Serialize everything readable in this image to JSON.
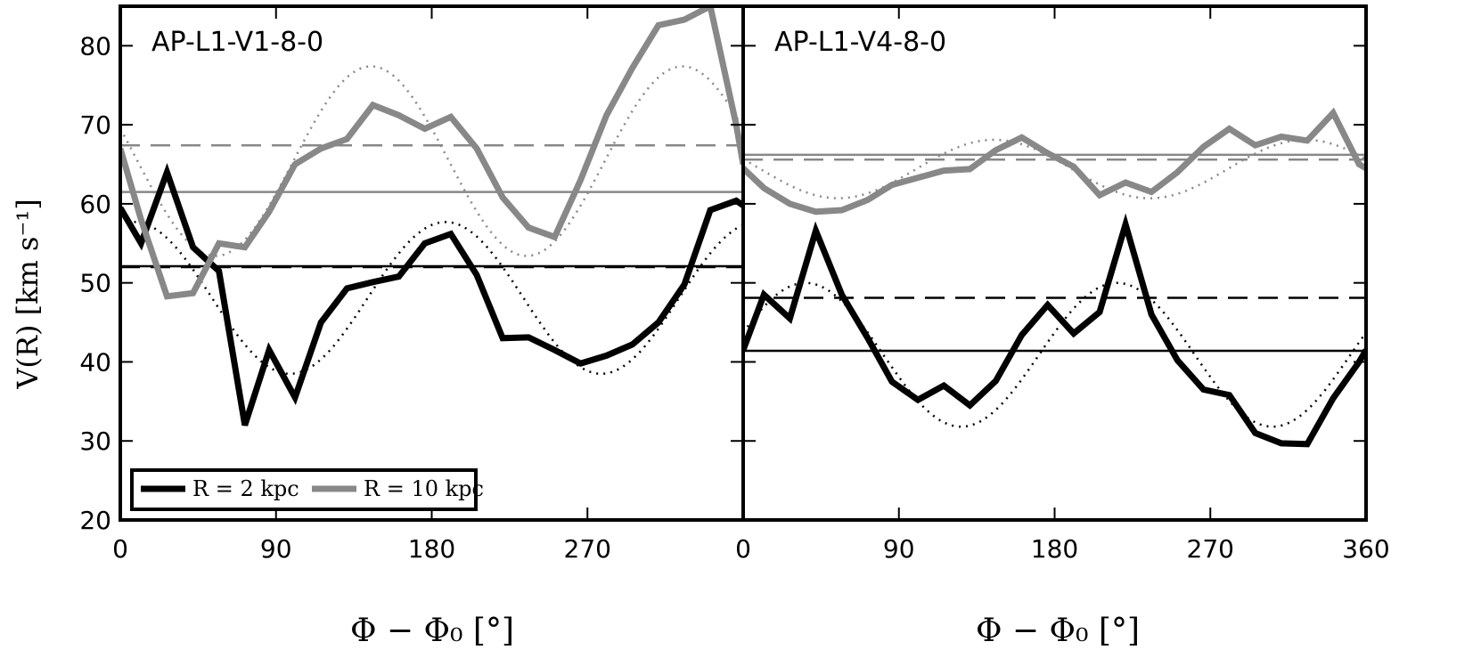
{
  "chart_data": [
    {
      "type": "line",
      "title": "AP-L1-V1-8-0",
      "xlabel": "Φ − Φ₀ [°]",
      "ylabel": "V(R) [km s⁻¹]",
      "xlim": [
        0,
        360
      ],
      "ylim": [
        20,
        85
      ],
      "xticks": [
        0,
        90,
        180,
        270
      ],
      "yticks": [
        20,
        30,
        40,
        50,
        60,
        70,
        80
      ],
      "grid": false,
      "legend": {
        "position": "bottom-left",
        "entries": [
          "R = 2 kpc",
          "R = 10 kpc"
        ]
      },
      "series": [
        {
          "name": "R = 2 kpc",
          "color": "#000000",
          "x": [
            0,
            12,
            27,
            42,
            57,
            72,
            86,
            101,
            116,
            131,
            146,
            161,
            176,
            191,
            206,
            221,
            236,
            251,
            266,
            281,
            296,
            311,
            326,
            341,
            356,
            360
          ],
          "y": [
            59.5,
            55,
            64,
            54.5,
            51.5,
            32,
            41.5,
            35.5,
            45,
            49.3,
            50.1,
            50.8,
            55,
            56.2,
            51,
            43,
            43.1,
            41.5,
            39.8,
            40.8,
            42.2,
            45,
            49.8,
            59.2,
            60.4,
            59.8
          ]
        },
        {
          "name": "R = 10 kpc",
          "color": "#888888",
          "x": [
            0,
            12,
            27,
            42,
            57,
            72,
            86,
            101,
            116,
            131,
            146,
            161,
            176,
            191,
            206,
            221,
            236,
            251,
            266,
            281,
            296,
            311,
            326,
            341,
            356,
            360
          ],
          "y": [
            67,
            58,
            48.3,
            48.7,
            55,
            54.5,
            59,
            65,
            67,
            68.2,
            72.5,
            71.2,
            69.5,
            71,
            67,
            60.8,
            57,
            55.8,
            63,
            71.2,
            77.2,
            82.6,
            83.3,
            85,
            70,
            65
          ]
        }
      ],
      "reference_lines": [
        {
          "series": "R = 2 kpc",
          "style": "solid",
          "y": 52.1
        },
        {
          "series": "R = 2 kpc",
          "style": "dashed",
          "y": 52.0
        },
        {
          "series": "R = 10 kpc",
          "style": "solid",
          "y": 61.5
        },
        {
          "series": "R = 10 kpc",
          "style": "dashed",
          "y": 67.4
        }
      ],
      "model_curves": [
        {
          "series": "R = 2 kpc",
          "style": "dotted",
          "formula": "mean + amplitude*cos(2*(x - phase))",
          "mean": 48.1,
          "amplitude": 9.6,
          "phase_deg": 8
        },
        {
          "series": "R = 10 kpc",
          "style": "dotted",
          "formula": "mean + amplitude*cos(2*(x - phase))",
          "mean": 65.4,
          "amplitude": 12.0,
          "phase_deg": 325
        }
      ]
    },
    {
      "type": "line",
      "title": "AP-L1-V4-8-0",
      "xlabel": "Φ − Φ₀ [°]",
      "ylabel": "",
      "xlim": [
        0,
        360
      ],
      "ylim": [
        20,
        85
      ],
      "xticks": [
        0,
        90,
        180,
        270,
        360
      ],
      "yticks": [
        20,
        30,
        40,
        50,
        60,
        70,
        80
      ],
      "grid": false,
      "series": [
        {
          "name": "R = 2 kpc",
          "color": "#000000",
          "x": [
            0,
            12,
            27,
            42,
            57,
            72,
            86,
            101,
            116,
            131,
            146,
            161,
            176,
            191,
            206,
            221,
            236,
            251,
            266,
            281,
            296,
            311,
            326,
            341,
            356,
            360
          ],
          "y": [
            41.5,
            48.5,
            45.5,
            56.6,
            48.5,
            43,
            37.5,
            35.2,
            37,
            34.5,
            37.6,
            43.4,
            47.2,
            43.6,
            46.3,
            57.4,
            46,
            40.2,
            36.5,
            35.8,
            31,
            29.7,
            29.6,
            35.4,
            40,
            41.5
          ]
        },
        {
          "name": "R = 10 kpc",
          "color": "#888888",
          "x": [
            0,
            12,
            27,
            42,
            57,
            72,
            86,
            101,
            116,
            131,
            146,
            161,
            176,
            191,
            206,
            221,
            236,
            251,
            266,
            281,
            296,
            311,
            326,
            341,
            356,
            360
          ],
          "y": [
            64.5,
            62,
            60,
            59,
            59.2,
            60.5,
            62.4,
            63.3,
            64.2,
            64.4,
            66.8,
            68.4,
            66.4,
            64.7,
            61.1,
            62.7,
            61.5,
            64,
            67.2,
            69.5,
            67.4,
            68.5,
            68,
            71.5,
            65,
            64.5
          ]
        }
      ],
      "reference_lines": [
        {
          "series": "R = 2 kpc",
          "style": "solid",
          "y": 41.4
        },
        {
          "series": "R = 2 kpc",
          "style": "dashed",
          "y": 48.1
        },
        {
          "series": "R = 10 kpc",
          "style": "solid",
          "y": 66.2
        },
        {
          "series": "R = 10 kpc",
          "style": "dashed",
          "y": 65.6
        }
      ],
      "model_curves": [
        {
          "series": "R = 2 kpc",
          "style": "dotted",
          "formula": "mean + amplitude*cos(2*(x - phase))",
          "mean": 40.9,
          "amplitude": 9.1,
          "phase_deg": 36
        },
        {
          "series": "R = 10 kpc",
          "style": "dotted",
          "formula": "mean + amplitude*cos(2*(x - phase))",
          "mean": 64.4,
          "amplitude": 3.7,
          "phase_deg": 145
        }
      ]
    }
  ]
}
